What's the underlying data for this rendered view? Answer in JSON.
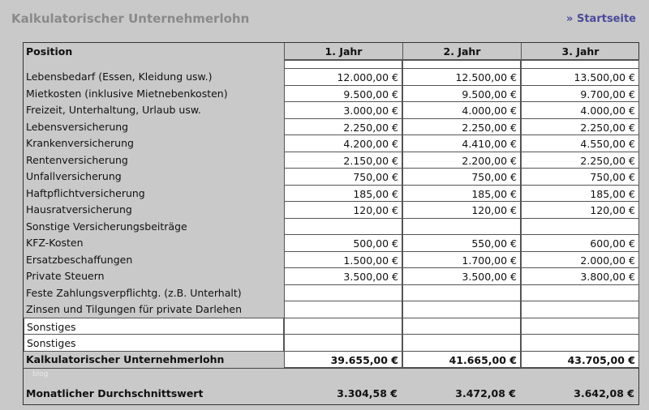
{
  "header": {
    "title": "Kalkulatorischer Unternehmerlohn",
    "link": "» Startseite"
  },
  "table": {
    "columns": [
      "Position",
      "1. Jahr",
      "2. Jahr",
      "3. Jahr"
    ],
    "rows": [
      {
        "position": "Lebensbedarf (Essen, Kleidung usw.)",
        "values": [
          "12.000,00 €",
          "12.500,00 €",
          "13.500,00 €"
        ]
      },
      {
        "position": "Mietkosten (inklusive Mietnebenkosten)",
        "values": [
          "9.500,00 €",
          "9.500,00 €",
          "9.700,00 €"
        ]
      },
      {
        "position": "Freizeit, Unterhaltung, Urlaub usw.",
        "values": [
          "3.000,00 €",
          "4.000,00 €",
          "4.000,00 €"
        ]
      },
      {
        "position": "Lebensversicherung",
        "values": [
          "2.250,00 €",
          "2.250,00 €",
          "2.250,00 €"
        ]
      },
      {
        "position": "Krankenversicherung",
        "values": [
          "4.200,00 €",
          "4.410,00 €",
          "4.550,00 €"
        ]
      },
      {
        "position": "Rentenversicherung",
        "values": [
          "2.150,00 €",
          "2.200,00 €",
          "2.250,00 €"
        ]
      },
      {
        "position": "Unfallversicherung",
        "values": [
          "750,00 €",
          "750,00 €",
          "750,00 €"
        ]
      },
      {
        "position": "Haftpflichtversicherung",
        "values": [
          "185,00 €",
          "185,00 €",
          "185,00 €"
        ]
      },
      {
        "position": "Hausratversicherung",
        "values": [
          "120,00 €",
          "120,00 €",
          "120,00 €"
        ]
      },
      {
        "position": "Sonstige Versicherungsbeiträge",
        "values": [
          null,
          null,
          null
        ]
      },
      {
        "position": "KFZ-Kosten",
        "values": [
          "500,00 €",
          "550,00 €",
          "600,00 €"
        ]
      },
      {
        "position": "Ersatzbeschaffungen",
        "values": [
          "1.500,00 €",
          "1.700,00 €",
          "2.000,00 €"
        ]
      },
      {
        "position": "Private Steuern",
        "values": [
          "3.500,00 €",
          "3.500,00 €",
          "3.800,00 €"
        ]
      },
      {
        "position": "Feste Zahlungsverpflichtg. (z.B. Unterhalt)",
        "values": [
          null,
          null,
          null
        ]
      },
      {
        "position": "Zinsen und Tilgungen für private Darlehen",
        "values": [
          null,
          null,
          null
        ]
      },
      {
        "position": "Sonstiges",
        "values": [
          null,
          null,
          null
        ]
      },
      {
        "position": "Sonstiges",
        "values": [
          null,
          null,
          null
        ]
      }
    ],
    "total": {
      "position": "Kalkulatorischer Unternehmerlohn",
      "values": [
        "39.655,00 €",
        "41.665,00 €",
        "43.705,00 €"
      ]
    },
    "watermark": "blog",
    "monthly": {
      "position": "Monatlicher Durchschnittswert",
      "values": [
        "3.304,58 €",
        "3.472,08 €",
        "3.642,08 €"
      ]
    }
  }
}
